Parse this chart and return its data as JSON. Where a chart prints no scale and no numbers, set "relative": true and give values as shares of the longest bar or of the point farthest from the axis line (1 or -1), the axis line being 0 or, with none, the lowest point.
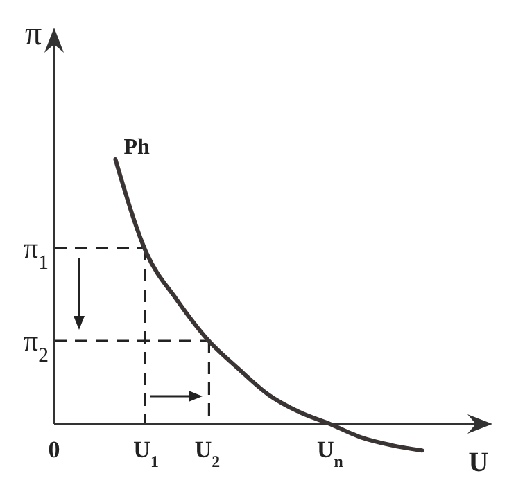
{
  "chart_data": {
    "type": "line",
    "relative": true,
    "xlabel": "U",
    "ylabel": "π",
    "categories": [
      "0",
      null,
      null,
      "U$_{1}$",
      null,
      "U$_{2}$",
      null,
      null,
      null,
      "U$_{n}$",
      null,
      null,
      null
    ],
    "series": [
      {
        "name": "Ph",
        "color": "#3a3434",
        "values": [
          null,
          null,
          1,
          0.65,
          0.47,
          0.32,
          0.21,
          0.11,
          0.045,
          0,
          -0.05,
          -0.08,
          -0.1
        ]
      }
    ],
    "ref_lines": [
      {
        "axis": "y",
        "value": 0.665,
        "label": "π$_{1}$",
        "line_style": "dashed"
      },
      {
        "axis": "y",
        "value": 0.314,
        "label": "π$_{2}$",
        "line_style": "dashed"
      }
    ],
    "line_style": "solid",
    "marker": "none"
  }
}
